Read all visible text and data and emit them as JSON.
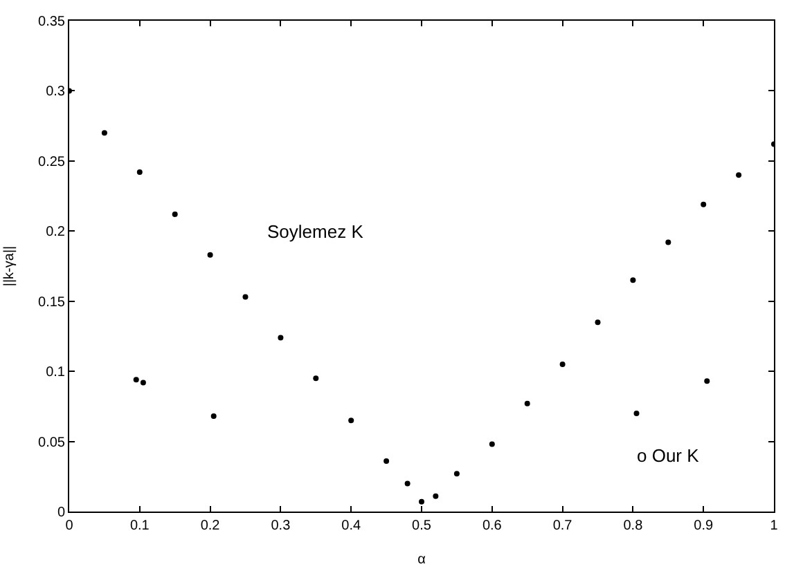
{
  "chart_data": {
    "type": "scatter",
    "xlabel": "α",
    "ylabel": "||k-γa||",
    "xlim": [
      0,
      1
    ],
    "ylim": [
      0,
      0.35
    ],
    "xticks": [
      0,
      0.1,
      0.2,
      0.3,
      0.4,
      0.5,
      0.6,
      0.7,
      0.8,
      0.9,
      1
    ],
    "yticks": [
      0,
      0.05,
      0.1,
      0.15,
      0.2,
      0.25,
      0.3,
      0.35
    ],
    "marker": "circle",
    "annotations": [
      "Soylemez K",
      "o Our K"
    ],
    "series": [
      {
        "color": "#000000",
        "x": [
          0,
          0.05,
          0.1,
          0.15,
          0.2,
          0.25,
          0.3,
          0.35,
          0.4,
          0.45,
          0.48,
          0.5,
          0.52,
          0.55,
          0.6,
          0.65,
          0.7,
          0.75,
          0.8,
          0.85,
          0.9,
          0.95,
          1
        ],
        "values": [
          0.3,
          0.27,
          0.242,
          0.212,
          0.183,
          0.153,
          0.124,
          0.095,
          0.065,
          0.036,
          0.02,
          0.007,
          0.011,
          0.027,
          0.048,
          0.077,
          0.105,
          0.135,
          0.165,
          0.192,
          0.219,
          0.24,
          0.262
        ]
      },
      {
        "color": "#000000",
        "x": [
          0.095,
          0.105,
          0.205,
          0.805,
          0.905
        ],
        "values": [
          0.094,
          0.092,
          0.068,
          0.07,
          0.093
        ]
      }
    ]
  }
}
